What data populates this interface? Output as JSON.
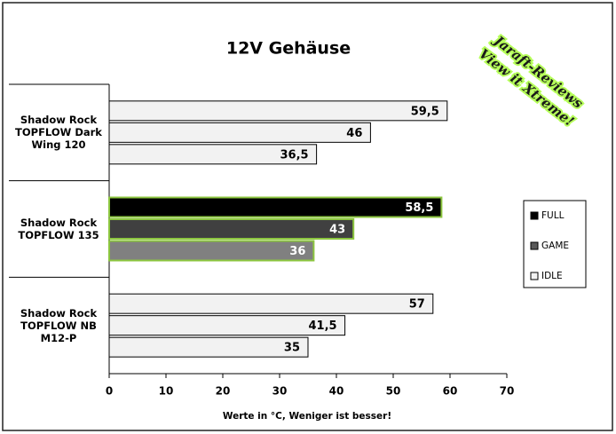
{
  "chart_data": {
    "type": "hbar",
    "title": "12V Gehäuse",
    "x_label": "Werte in °C, Weniger ist besser!",
    "watermark": [
      "Jaraft-Reviews",
      "View it Xtreme!"
    ],
    "categories": [
      "Shadow Rock TOPFLOW Dark Wing 120",
      "Shadow Rock TOPFLOW 135",
      "Shadow Rock TOPFLOW NB M12-P"
    ],
    "series": [
      {
        "name": "FULL",
        "color": "#000000",
        "values": [
          59.5,
          58.5,
          57
        ],
        "value_labels": [
          "59,5",
          "58,5",
          "57"
        ],
        "point_colors": [
          "#f2f2f2",
          "#000000",
          "#f2f2f2"
        ],
        "point_edge_colors": [
          "#000000",
          "#8cc63f",
          "#000000"
        ]
      },
      {
        "name": "GAME",
        "color": "#595959",
        "values": [
          46,
          43,
          41.5
        ],
        "value_labels": [
          "46",
          "43",
          "41,5"
        ],
        "point_colors": [
          "#f2f2f2",
          "#404040",
          "#f2f2f2"
        ],
        "point_edge_colors": [
          "#000000",
          "#8cc63f",
          "#000000"
        ]
      },
      {
        "name": "IDLE",
        "color": "#f2f2f2",
        "values": [
          36.5,
          36,
          35
        ],
        "value_labels": [
          "36,5",
          "36",
          "35"
        ],
        "point_colors": [
          "#f2f2f2",
          "#808080",
          "#f2f2f2"
        ],
        "point_edge_colors": [
          "#000000",
          "#8cc63f",
          "#000000"
        ]
      }
    ],
    "xlim": [
      0,
      70
    ],
    "xticks": [
      0,
      10,
      20,
      30,
      40,
      50,
      60,
      70
    ],
    "legend": "right"
  }
}
